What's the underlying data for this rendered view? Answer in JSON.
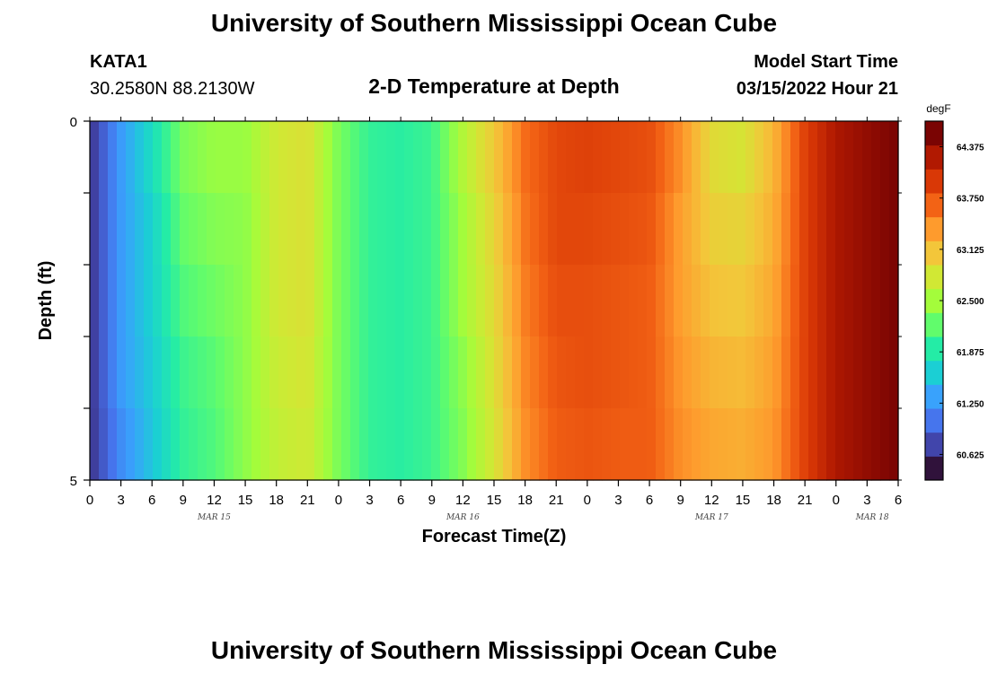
{
  "header": {
    "title": "University of Southern Mississippi Ocean Cube",
    "station": "KATA1",
    "coords": "30.2580N  88.2130W",
    "subtitle": "2-D Temperature at Depth",
    "model_label": "Model Start Time",
    "model_time": "03/15/2022 Hour 21"
  },
  "footer": {
    "title": "University of Southern Mississippi Ocean Cube"
  },
  "chart_data": {
    "type": "heatmap",
    "title": "2-D Temperature at Depth",
    "xlabel": "Forecast Time(Z)",
    "ylabel": "Depth (ft)",
    "ytick_labels": [
      "0",
      "5"
    ],
    "ylim": [
      0,
      5
    ],
    "y_reversed": true,
    "depth_rows_ft": [
      0.5,
      1.5,
      2.5,
      3.5,
      4.5
    ],
    "x_tick_labels": [
      "0",
      "3",
      "6",
      "9",
      "12",
      "15",
      "18",
      "21",
      "0",
      "3",
      "6",
      "9",
      "12",
      "15",
      "18",
      "21",
      "0",
      "3",
      "6",
      "9",
      "12",
      "15",
      "18",
      "21",
      "0",
      "3",
      "6"
    ],
    "date_labels": [
      "MAR 15",
      "MAR 16",
      "MAR 17",
      "MAR 18"
    ],
    "time_hours_from_mar15_00z": [
      0,
      3,
      6,
      9,
      12,
      15,
      18,
      21,
      24,
      27,
      30,
      33,
      36,
      39,
      42,
      45,
      48,
      51,
      54,
      57,
      60,
      63,
      66,
      69,
      72,
      75,
      78
    ],
    "temperature_degF_by_depth": [
      [
        60.5,
        61.2,
        61.7,
        62.3,
        62.45,
        62.45,
        62.8,
        62.9,
        62.3,
        61.95,
        61.9,
        62.0,
        62.6,
        63.1,
        63.7,
        63.95,
        64.0,
        63.95,
        63.9,
        63.5,
        62.95,
        62.85,
        63.25,
        64.0,
        64.4,
        64.55,
        64.7
      ],
      [
        60.5,
        61.2,
        61.6,
        62.2,
        62.35,
        62.4,
        62.8,
        62.9,
        62.3,
        61.95,
        61.9,
        62.0,
        62.5,
        63.0,
        63.65,
        63.95,
        63.95,
        63.9,
        63.85,
        63.4,
        63.05,
        63.0,
        63.3,
        64.0,
        64.4,
        64.55,
        64.7
      ],
      [
        60.5,
        61.2,
        61.6,
        62.1,
        62.25,
        62.4,
        62.8,
        62.9,
        62.3,
        61.95,
        61.9,
        62.0,
        62.5,
        62.95,
        63.6,
        63.9,
        63.9,
        63.85,
        63.8,
        63.4,
        63.15,
        63.1,
        63.35,
        64.0,
        64.4,
        64.55,
        64.7
      ],
      [
        60.5,
        61.2,
        61.55,
        62.0,
        62.15,
        62.4,
        62.75,
        62.85,
        62.3,
        61.95,
        61.9,
        62.0,
        62.4,
        62.9,
        63.55,
        63.85,
        63.9,
        63.85,
        63.8,
        63.45,
        63.25,
        63.2,
        63.4,
        64.0,
        64.4,
        64.55,
        64.7
      ],
      [
        60.5,
        61.1,
        61.5,
        61.95,
        62.1,
        62.4,
        62.7,
        62.8,
        62.3,
        61.95,
        61.9,
        62.0,
        62.35,
        62.85,
        63.5,
        63.8,
        63.85,
        63.8,
        63.8,
        63.5,
        63.35,
        63.3,
        63.45,
        64.0,
        64.4,
        64.55,
        64.7
      ]
    ],
    "colorbar": {
      "unit": "degF",
      "tick_labels": [
        "60.625",
        "61.250",
        "61.875",
        "62.500",
        "63.125",
        "63.750",
        "64.375"
      ],
      "range": [
        60.3125,
        64.6875
      ],
      "colors": [
        "#30123b",
        "#4145ab",
        "#4675ed",
        "#39a2fc",
        "#1bcfd4",
        "#24eca6",
        "#61fc6c",
        "#a4fc3b",
        "#d1e834",
        "#f3c63a",
        "#fe9b2d",
        "#f36315",
        "#d93806",
        "#b11901",
        "#7a0403"
      ]
    },
    "grid": false,
    "legend": "colorbar at right"
  }
}
